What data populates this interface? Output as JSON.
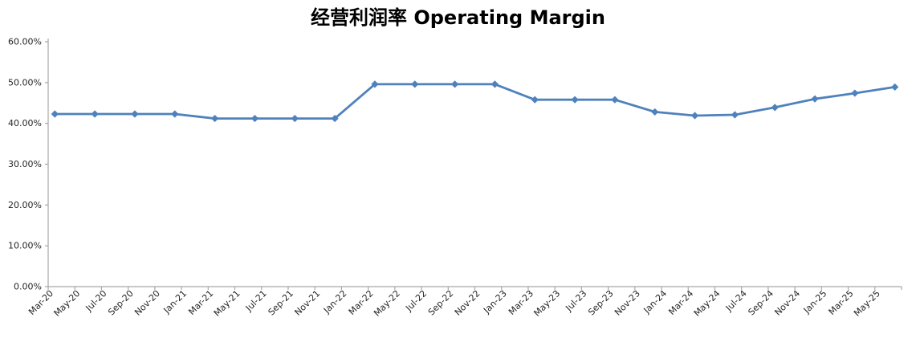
{
  "title": "经营利润率 Operating Margin",
  "chart_data": {
    "type": "line",
    "title": "经营利润率 Operating Margin",
    "grid": false,
    "legend": false,
    "series": [
      {
        "name": "经营利润率 Operating Margin",
        "point_labels": [
          "Mar-20",
          "Jun-20",
          "Sep-20",
          "Dec-20",
          "Mar-21",
          "Jun-21",
          "Sep-21",
          "Dec-21",
          "Mar-22",
          "Jun-22",
          "Sep-22",
          "Dec-22",
          "Mar-23",
          "Jun-23",
          "Sep-23",
          "Dec-23",
          "Mar-24",
          "Jun-24",
          "Sep-24",
          "Dec-24",
          "Mar-25",
          "Jun-25"
        ],
        "month_offsets": [
          0,
          3,
          6,
          9,
          12,
          15,
          18,
          21,
          24,
          27,
          30,
          33,
          36,
          39,
          42,
          45,
          48,
          51,
          54,
          57,
          60,
          63
        ],
        "values": [
          42.3,
          42.3,
          42.3,
          42.3,
          41.2,
          41.2,
          41.2,
          41.2,
          49.6,
          49.6,
          49.6,
          49.6,
          45.8,
          45.8,
          45.8,
          42.8,
          41.9,
          42.1,
          43.9,
          46.0,
          47.4,
          48.9
        ]
      }
    ],
    "x_axis": {
      "type": "date-months",
      "months_total": 64,
      "tick_every_months": 2,
      "tick_labels": [
        "Mar-20",
        "May-20",
        "Jul-20",
        "Sep-20",
        "Nov-20",
        "Jan-21",
        "Mar-21",
        "May-21",
        "Jul-21",
        "Sep-21",
        "Nov-21",
        "Jan-22",
        "Mar-22",
        "May-22",
        "Jul-22",
        "Sep-22",
        "Nov-22",
        "Jan-23",
        "Mar-23",
        "May-23",
        "Jul-23",
        "Sep-23",
        "Nov-23",
        "Jan-24",
        "Mar-24",
        "May-24",
        "Jul-24",
        "Sep-24",
        "Nov-24",
        "Jan-25",
        "Mar-25",
        "May-25"
      ],
      "label_rotation_deg": -45
    },
    "y_axis": {
      "min": 0,
      "max": 60,
      "tick_step": 10,
      "tick_labels": [
        "0.00%",
        "10.00%",
        "20.00%",
        "30.00%",
        "40.00%",
        "50.00%",
        "60.00%"
      ]
    },
    "style": {
      "line_color": "#4F81BD",
      "marker": "diamond",
      "marker_color": "#4F81BD",
      "axis_color": "#A6A6A6",
      "label_color": "#262626",
      "background_color": "#FFFFFF"
    }
  }
}
